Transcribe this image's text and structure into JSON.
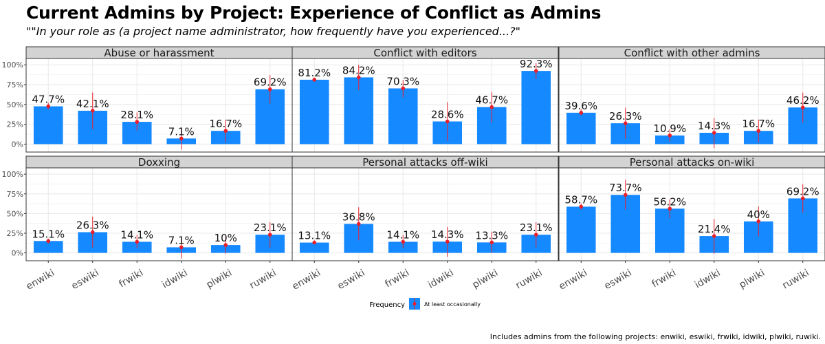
{
  "title": "Current Admins by Project: Experience of Conflict as Admins",
  "subtitle": "\"\"In your role as (a project name administrator, how frequently have you experienced...?\"",
  "caption": "Includes admins from the following projects: enwiki, eswiki, frwiki, idwiki, plwiki, ruwiki.",
  "colors": {
    "bar": "#1589FF",
    "point": "#E8202A",
    "strip": "#D3D3D3",
    "grid": "#EBEBEB"
  },
  "chart_data": {
    "type": "bar",
    "facet_layout": "2 rows x 3 columns",
    "categories": [
      "enwiki",
      "eswiki",
      "frwiki",
      "idwiki",
      "plwiki",
      "ruwiki"
    ],
    "ylim": [
      -0.1,
      1.08
    ],
    "y_ticks": [
      0,
      0.25,
      0.5,
      0.75,
      1.0
    ],
    "y_tick_labels": [
      "0%",
      "25%",
      "50%",
      "75%",
      "100%"
    ],
    "legend": {
      "title": "Frequency",
      "label": "At least occasionally",
      "position": "bottom"
    },
    "panels": [
      {
        "name": "Abuse or harassment",
        "values": [
          0.477,
          0.421,
          0.281,
          0.071,
          0.167,
          0.692
        ],
        "labels": [
          "47.7%",
          "42.1%",
          "28.1%",
          "7.1%",
          "16.7%",
          "69.2%"
        ],
        "ci": [
          [
            0.44,
            0.52
          ],
          [
            0.19,
            0.65
          ],
          [
            0.17,
            0.4
          ],
          [
            -0.07,
            0.21
          ],
          [
            0.02,
            0.31
          ],
          [
            0.51,
            0.87
          ]
        ]
      },
      {
        "name": "Conflict with editors",
        "values": [
          0.812,
          0.842,
          0.703,
          0.286,
          0.467,
          0.923
        ],
        "labels": [
          "81.2%",
          "84.2%",
          "70.3%",
          "28.6%",
          "46.7%",
          "92.3%"
        ],
        "ci": [
          [
            0.79,
            0.84
          ],
          [
            0.68,
            1.0
          ],
          [
            0.59,
            0.81
          ],
          [
            0.04,
            0.53
          ],
          [
            0.27,
            0.66
          ],
          [
            0.82,
            1.02
          ]
        ]
      },
      {
        "name": "Conflict with other admins",
        "values": [
          0.396,
          0.263,
          0.109,
          0.143,
          0.167,
          0.462
        ],
        "labels": [
          "39.6%",
          "26.3%",
          "10.9%",
          "14.3%",
          "16.7%",
          "46.2%"
        ],
        "ci": [
          [
            0.36,
            0.44
          ],
          [
            0.07,
            0.46
          ],
          [
            0.03,
            0.19
          ],
          [
            -0.05,
            0.33
          ],
          [
            0.02,
            0.31
          ],
          [
            0.27,
            0.65
          ]
        ]
      },
      {
        "name": "Doxxing",
        "values": [
          0.151,
          0.263,
          0.141,
          0.071,
          0.1,
          0.231
        ],
        "labels": [
          "15.1%",
          "26.3%",
          "14.1%",
          "7.1%",
          "10%",
          "23.1%"
        ],
        "ci": [
          [
            0.12,
            0.18
          ],
          [
            0.07,
            0.46
          ],
          [
            0.06,
            0.23
          ],
          [
            -0.07,
            0.21
          ],
          [
            -0.01,
            0.21
          ],
          [
            0.07,
            0.39
          ]
        ]
      },
      {
        "name": "Personal attacks off-wiki",
        "values": [
          0.131,
          0.368,
          0.141,
          0.143,
          0.133,
          0.231
        ],
        "labels": [
          "13.1%",
          "36.8%",
          "14.1%",
          "14.3%",
          "13.3%",
          "23.1%"
        ],
        "ci": [
          [
            0.11,
            0.16
          ],
          [
            0.16,
            0.58
          ],
          [
            0.06,
            0.23
          ],
          [
            -0.05,
            0.33
          ],
          [
            0.0,
            0.27
          ],
          [
            0.07,
            0.39
          ]
        ]
      },
      {
        "name": "Personal attacks on-wiki",
        "values": [
          0.587,
          0.737,
          0.562,
          0.214,
          0.4,
          0.692
        ],
        "labels": [
          "58.7%",
          "73.7%",
          "56.2%",
          "21.4%",
          "40%",
          "69.2%"
        ],
        "ci": [
          [
            0.55,
            0.63
          ],
          [
            0.55,
            0.93
          ],
          [
            0.44,
            0.68
          ],
          [
            -0.01,
            0.43
          ],
          [
            0.21,
            0.59
          ],
          [
            0.51,
            0.87
          ]
        ]
      }
    ]
  }
}
